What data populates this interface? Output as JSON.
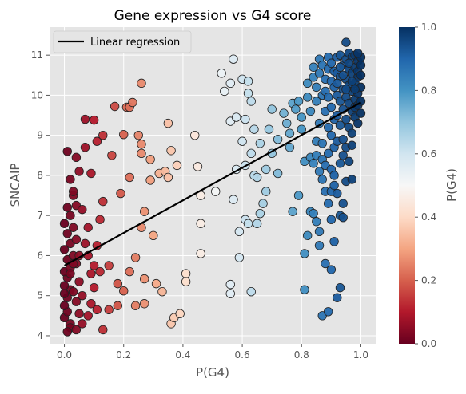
{
  "chart_data": {
    "type": "scatter",
    "title": "Gene expression vs G4 score",
    "xlabel": "P(G4)",
    "ylabel": "SNCAIP",
    "xlim": [
      -0.05,
      1.05
    ],
    "ylim": [
      3.8,
      11.7
    ],
    "xticks": [
      "0.0",
      "0.2",
      "0.4",
      "0.6",
      "0.8",
      "1.0"
    ],
    "xtick_values": [
      0.0,
      0.2,
      0.4,
      0.6,
      0.8,
      1.0
    ],
    "yticks": [
      "4",
      "5",
      "6",
      "7",
      "8",
      "9",
      "10",
      "11"
    ],
    "ytick_values": [
      4,
      5,
      6,
      7,
      8,
      9,
      10,
      11
    ],
    "grid": true,
    "background": "#e5e5e5",
    "colormap": "RdBu",
    "colorbar": {
      "label": "P(G4)",
      "ticks": [
        "0.0",
        "0.2",
        "0.4",
        "0.6",
        "0.8",
        "1.0"
      ],
      "tick_values": [
        0.0,
        0.2,
        0.4,
        0.6,
        0.8,
        1.0
      ],
      "colors": [
        "#67001f",
        "#b2182b",
        "#d6604d",
        "#f4a582",
        "#fddbc7",
        "#f7f7f7",
        "#d1e5f0",
        "#92c5de",
        "#4393c3",
        "#2166ac",
        "#053061"
      ]
    },
    "legend": {
      "position": "top-left",
      "entries": [
        "Linear regression"
      ]
    },
    "regression": {
      "name": "Linear regression",
      "x": [
        0.0,
        1.0
      ],
      "y": [
        5.75,
        9.82
      ],
      "color": "#000000"
    },
    "points": [
      [
        0.0,
        4.45
      ],
      [
        0.01,
        4.6
      ],
      [
        0.02,
        4.3
      ],
      [
        0.0,
        4.75
      ],
      [
        0.01,
        4.95
      ],
      [
        0.02,
        5.15
      ],
      [
        0.0,
        5.25
      ],
      [
        0.01,
        5.45
      ],
      [
        0.0,
        5.6
      ],
      [
        0.02,
        5.7
      ],
      [
        0.01,
        5.9
      ],
      [
        0.03,
        6.0
      ],
      [
        0.0,
        6.15
      ],
      [
        0.02,
        6.3
      ],
      [
        0.01,
        6.55
      ],
      [
        0.0,
        6.8
      ],
      [
        0.02,
        7.0
      ],
      [
        0.01,
        7.2
      ],
      [
        0.03,
        7.5
      ],
      [
        0.02,
        7.9
      ],
      [
        0.01,
        8.6
      ],
      [
        0.04,
        8.45
      ],
      [
        0.05,
        8.1
      ],
      [
        0.03,
        7.6
      ],
      [
        0.04,
        7.25
      ],
      [
        0.03,
        6.7
      ],
      [
        0.04,
        6.4
      ],
      [
        0.05,
        6.0
      ],
      [
        0.04,
        5.8
      ],
      [
        0.05,
        5.35
      ],
      [
        0.03,
        5.1
      ],
      [
        0.04,
        4.85
      ],
      [
        0.05,
        4.55
      ],
      [
        0.02,
        4.2
      ],
      [
        0.04,
        4.15
      ],
      [
        0.06,
        4.3
      ],
      [
        0.01,
        4.1
      ],
      [
        0.0,
        5.05
      ],
      [
        0.02,
        5.55
      ],
      [
        0.03,
        5.8
      ],
      [
        0.06,
        5.0
      ],
      [
        0.07,
        8.7
      ],
      [
        0.08,
        6.0
      ],
      [
        0.07,
        6.3
      ],
      [
        0.08,
        6.7
      ],
      [
        0.06,
        7.15
      ],
      [
        0.08,
        4.5
      ],
      [
        0.09,
        4.8
      ],
      [
        0.1,
        5.2
      ],
      [
        0.1,
        5.75
      ],
      [
        0.11,
        6.25
      ],
      [
        0.12,
        6.9
      ],
      [
        0.09,
        8.05
      ],
      [
        0.11,
        8.85
      ],
      [
        0.07,
        9.4
      ],
      [
        0.1,
        9.38
      ],
      [
        0.13,
        9.0
      ],
      [
        0.13,
        7.35
      ],
      [
        0.12,
        5.6
      ],
      [
        0.13,
        4.15
      ],
      [
        0.15,
        5.75
      ],
      [
        0.15,
        4.65
      ],
      [
        0.09,
        5.55
      ],
      [
        0.11,
        4.65
      ],
      [
        0.16,
        8.5
      ],
      [
        0.17,
        9.72
      ],
      [
        0.18,
        5.3
      ],
      [
        0.18,
        4.75
      ],
      [
        0.19,
        7.55
      ],
      [
        0.2,
        9.02
      ],
      [
        0.2,
        5.12
      ],
      [
        0.21,
        9.7
      ],
      [
        0.22,
        9.7
      ],
      [
        0.22,
        7.95
      ],
      [
        0.22,
        5.6
      ],
      [
        0.23,
        9.82
      ],
      [
        0.24,
        4.75
      ],
      [
        0.24,
        5.95
      ],
      [
        0.25,
        9.0
      ],
      [
        0.26,
        10.3
      ],
      [
        0.26,
        8.78
      ],
      [
        0.26,
        8.55
      ],
      [
        0.27,
        7.1
      ],
      [
        0.26,
        6.7
      ],
      [
        0.27,
        5.42
      ],
      [
        0.27,
        4.8
      ],
      [
        0.29,
        8.4
      ],
      [
        0.29,
        7.88
      ],
      [
        0.3,
        6.5
      ],
      [
        0.31,
        5.3
      ],
      [
        0.32,
        8.05
      ],
      [
        0.33,
        5.1
      ],
      [
        0.34,
        8.1
      ],
      [
        0.35,
        9.3
      ],
      [
        0.35,
        7.95
      ],
      [
        0.36,
        8.62
      ],
      [
        0.36,
        4.3
      ],
      [
        0.37,
        4.45
      ],
      [
        0.38,
        8.25
      ],
      [
        0.39,
        4.55
      ],
      [
        0.41,
        5.55
      ],
      [
        0.41,
        5.35
      ],
      [
        0.44,
        9.0
      ],
      [
        0.45,
        8.22
      ],
      [
        0.46,
        7.5
      ],
      [
        0.46,
        6.8
      ],
      [
        0.46,
        6.05
      ],
      [
        0.51,
        7.6
      ],
      [
        0.53,
        10.55
      ],
      [
        0.54,
        10.1
      ],
      [
        0.56,
        10.3
      ],
      [
        0.56,
        9.35
      ],
      [
        0.56,
        5.28
      ],
      [
        0.56,
        5.05
      ],
      [
        0.57,
        10.9
      ],
      [
        0.57,
        7.4
      ],
      [
        0.58,
        9.45
      ],
      [
        0.58,
        8.15
      ],
      [
        0.59,
        6.6
      ],
      [
        0.59,
        5.95
      ],
      [
        0.6,
        10.4
      ],
      [
        0.6,
        8.85
      ],
      [
        0.61,
        9.4
      ],
      [
        0.61,
        8.25
      ],
      [
        0.61,
        6.9
      ],
      [
        0.62,
        10.35
      ],
      [
        0.62,
        10.05
      ],
      [
        0.62,
        6.8
      ],
      [
        0.63,
        8.55
      ],
      [
        0.63,
        5.1
      ],
      [
        0.63,
        9.85
      ],
      [
        0.64,
        9.15
      ],
      [
        0.64,
        8.0
      ],
      [
        0.65,
        6.8
      ],
      [
        0.65,
        7.95
      ],
      [
        0.66,
        8.8
      ],
      [
        0.66,
        7.05
      ],
      [
        0.67,
        7.3
      ],
      [
        0.68,
        8.15
      ],
      [
        0.68,
        7.6
      ],
      [
        0.69,
        9.15
      ],
      [
        0.7,
        9.65
      ],
      [
        0.7,
        8.55
      ],
      [
        0.72,
        8.9
      ],
      [
        0.72,
        8.05
      ],
      [
        0.74,
        9.55
      ],
      [
        0.75,
        9.3
      ],
      [
        0.76,
        9.05
      ],
      [
        0.76,
        8.7
      ],
      [
        0.77,
        9.8
      ],
      [
        0.77,
        7.1
      ],
      [
        0.78,
        9.65
      ],
      [
        0.79,
        9.85
      ],
      [
        0.79,
        7.5
      ],
      [
        0.8,
        9.45
      ],
      [
        0.8,
        9.15
      ],
      [
        0.81,
        8.35
      ],
      [
        0.81,
        6.05
      ],
      [
        0.81,
        5.15
      ],
      [
        0.82,
        10.3
      ],
      [
        0.82,
        9.95
      ],
      [
        0.82,
        6.5
      ],
      [
        0.83,
        9.6
      ],
      [
        0.83,
        8.45
      ],
      [
        0.83,
        7.1
      ],
      [
        0.84,
        10.45
      ],
      [
        0.84,
        10.7
      ],
      [
        0.84,
        8.3
      ],
      [
        0.84,
        7.05
      ],
      [
        0.85,
        10.2
      ],
      [
        0.85,
        9.85
      ],
      [
        0.85,
        8.85
      ],
      [
        0.85,
        8.5
      ],
      [
        0.85,
        6.85
      ],
      [
        0.86,
        10.9
      ],
      [
        0.86,
        10.55
      ],
      [
        0.86,
        9.3
      ],
      [
        0.86,
        8.1
      ],
      [
        0.86,
        6.6
      ],
      [
        0.86,
        6.25
      ],
      [
        0.87,
        10.75
      ],
      [
        0.87,
        10.0
      ],
      [
        0.87,
        8.8
      ],
      [
        0.87,
        8.4
      ],
      [
        0.87,
        7.9
      ],
      [
        0.87,
        4.5
      ],
      [
        0.88,
        10.4
      ],
      [
        0.88,
        10.1
      ],
      [
        0.88,
        9.6
      ],
      [
        0.88,
        8.25
      ],
      [
        0.88,
        7.6
      ],
      [
        0.88,
        5.8
      ],
      [
        0.89,
        10.95
      ],
      [
        0.89,
        10.65
      ],
      [
        0.89,
        9.95
      ],
      [
        0.89,
        9.2
      ],
      [
        0.89,
        8.55
      ],
      [
        0.89,
        7.3
      ],
      [
        0.89,
        4.6
      ],
      [
        0.9,
        10.35
      ],
      [
        0.9,
        10.8
      ],
      [
        0.9,
        9.7
      ],
      [
        0.9,
        9.0
      ],
      [
        0.9,
        8.15
      ],
      [
        0.9,
        7.6
      ],
      [
        0.9,
        6.9
      ],
      [
        0.9,
        5.65
      ],
      [
        0.91,
        10.6
      ],
      [
        0.91,
        10.2
      ],
      [
        0.91,
        9.4
      ],
      [
        0.91,
        8.7
      ],
      [
        0.91,
        8.0
      ],
      [
        0.91,
        7.75
      ],
      [
        0.91,
        6.35
      ],
      [
        0.92,
        10.95
      ],
      [
        0.92,
        10.55
      ],
      [
        0.92,
        10.0
      ],
      [
        0.92,
        9.5
      ],
      [
        0.92,
        8.85
      ],
      [
        0.92,
        7.55
      ],
      [
        0.92,
        4.95
      ],
      [
        0.93,
        11.0
      ],
      [
        0.93,
        10.45
      ],
      [
        0.93,
        9.85
      ],
      [
        0.93,
        9.25
      ],
      [
        0.93,
        8.3
      ],
      [
        0.93,
        7.0
      ],
      [
        0.93,
        5.2
      ],
      [
        0.94,
        10.75
      ],
      [
        0.94,
        10.15
      ],
      [
        0.94,
        9.65
      ],
      [
        0.94,
        8.9
      ],
      [
        0.94,
        8.5
      ],
      [
        0.94,
        7.3
      ],
      [
        0.94,
        6.95
      ],
      [
        0.95,
        11.32
      ],
      [
        0.95,
        10.9
      ],
      [
        0.95,
        10.4
      ],
      [
        0.95,
        9.95
      ],
      [
        0.95,
        9.4
      ],
      [
        0.95,
        8.7
      ],
      [
        0.95,
        7.85
      ],
      [
        0.96,
        11.05
      ],
      [
        0.96,
        10.65
      ],
      [
        0.96,
        10.25
      ],
      [
        0.96,
        9.8
      ],
      [
        0.96,
        9.2
      ],
      [
        0.96,
        8.35
      ],
      [
        0.97,
        10.95
      ],
      [
        0.97,
        10.55
      ],
      [
        0.97,
        10.1
      ],
      [
        0.97,
        9.6
      ],
      [
        0.97,
        9.05
      ],
      [
        0.97,
        8.75
      ],
      [
        0.97,
        7.9
      ],
      [
        0.98,
        11.0
      ],
      [
        0.98,
        10.7
      ],
      [
        0.98,
        10.3
      ],
      [
        0.98,
        9.9
      ],
      [
        0.98,
        9.45
      ],
      [
        0.98,
        9.7
      ],
      [
        0.99,
        10.85
      ],
      [
        0.99,
        10.45
      ],
      [
        0.99,
        10.05
      ],
      [
        0.99,
        9.75
      ],
      [
        0.99,
        9.3
      ],
      [
        0.99,
        10.6
      ],
      [
        1.0,
        10.95
      ],
      [
        1.0,
        10.5
      ],
      [
        1.0,
        10.2
      ],
      [
        1.0,
        9.85
      ],
      [
        1.0,
        9.55
      ],
      [
        0.99,
        11.05
      ],
      [
        1.0,
        10.75
      ],
      [
        0.98,
        10.15
      ],
      [
        0.97,
        10.35
      ],
      [
        0.96,
        10.8
      ],
      [
        0.95,
        10.15
      ],
      [
        0.94,
        10.5
      ],
      [
        0.93,
        10.7
      ],
      [
        0.92,
        10.3
      ]
    ]
  }
}
